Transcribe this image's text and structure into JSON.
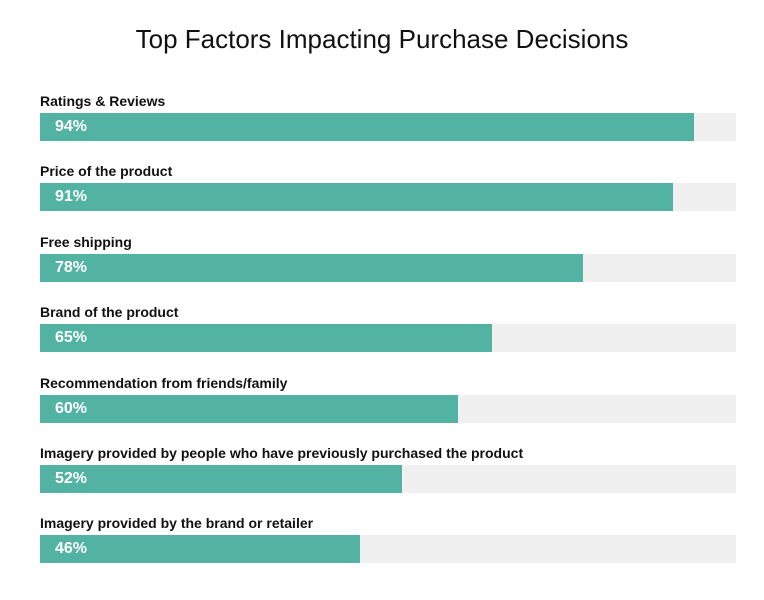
{
  "chart_data": {
    "type": "bar",
    "orientation": "horizontal",
    "title": "Top Factors Impacting Purchase Decisions",
    "categories": [
      "Ratings & Reviews",
      "Price of the product",
      "Free shipping",
      "Brand of the product",
      "Recommendation from friends/family",
      "Imagery provided by people who have previously purchased the product",
      "Imagery provided by the brand or retailer"
    ],
    "values": [
      94,
      91,
      78,
      65,
      60,
      52,
      46
    ],
    "data_labels": [
      "94%",
      "91%",
      "78%",
      "65%",
      "60%",
      "52%",
      "46%"
    ],
    "xlim": [
      0,
      100
    ],
    "unit": "%",
    "grid": false,
    "colors": {
      "bar": "#52b3a3",
      "track": "#f0f0f0"
    }
  }
}
